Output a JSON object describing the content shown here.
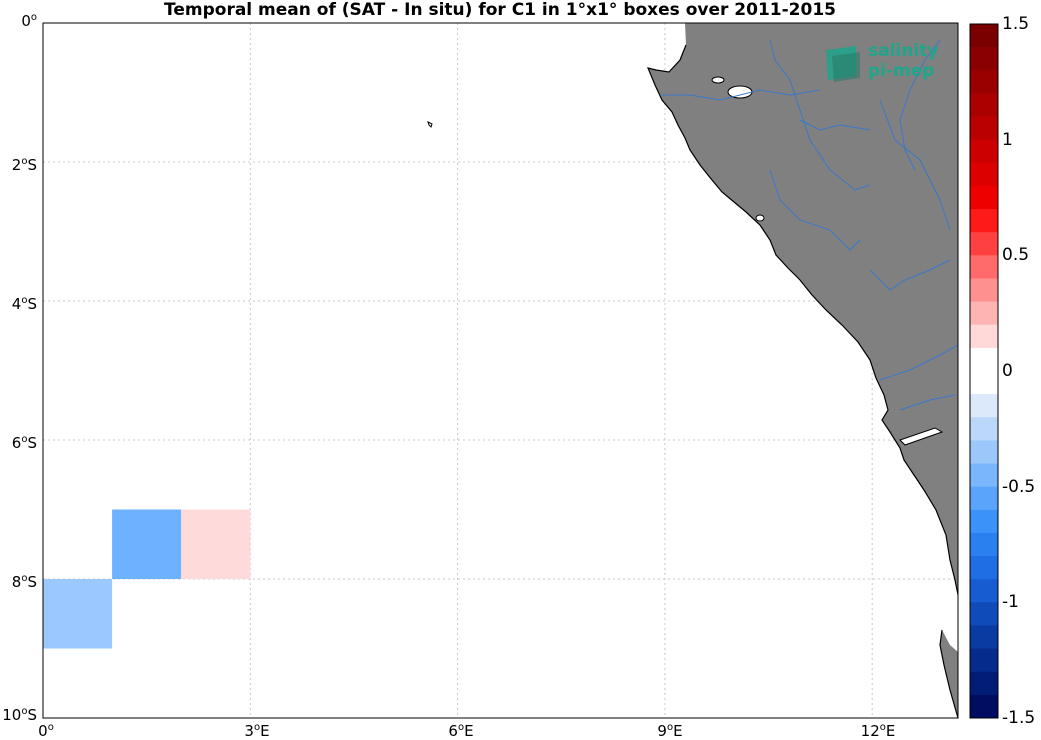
{
  "title": "Temporal mean of (SAT - In situ) for C1 in 1°x1° boxes over 2011-2015",
  "lat_ticks": [
    {
      "deg": "0",
      "hemi": ""
    },
    {
      "deg": "2",
      "hemi": "S"
    },
    {
      "deg": "4",
      "hemi": "S"
    },
    {
      "deg": "6",
      "hemi": "S"
    },
    {
      "deg": "8",
      "hemi": "S"
    },
    {
      "deg": "10",
      "hemi": "S"
    }
  ],
  "lon_ticks": [
    {
      "deg": "0",
      "hemi": ""
    },
    {
      "deg": "3",
      "hemi": "E"
    },
    {
      "deg": "6",
      "hemi": "E"
    },
    {
      "deg": "9",
      "hemi": "E"
    },
    {
      "deg": "12",
      "hemi": "E"
    }
  ],
  "colorbar": {
    "min": -1.5,
    "max": 1.5,
    "labels": [
      "1.5",
      "1",
      "0.5",
      "0",
      "-0.5",
      "-1",
      "-1.5"
    ],
    "colors_top_to_bottom": [
      "#7a0000",
      "#8a0000",
      "#990000",
      "#aa0000",
      "#bb0000",
      "#cc0000",
      "#dd0000",
      "#ee0000",
      "#ff1a1a",
      "#ff4040",
      "#ff6a6a",
      "#ff9090",
      "#ffb4b4",
      "#ffd8d8",
      "#ffffff",
      "#ffffff",
      "#dbe9fb",
      "#bbd8fb",
      "#9bc7fb",
      "#7ab6fb",
      "#5aa4fb",
      "#3b92f8",
      "#2b80f0",
      "#1f6ee3",
      "#175cd0",
      "#104bba",
      "#0a3ba3",
      "#052c8c",
      "#021d76",
      "#000d60"
    ]
  },
  "boxes": [
    {
      "lon_min": 0,
      "lon_max": 1,
      "lat_min": -9,
      "lat_max": -8,
      "color": "#9bc8ff"
    },
    {
      "lon_min": 1,
      "lon_max": 2,
      "lat_min": -8,
      "lat_max": -7,
      "color": "#6cb2ff"
    },
    {
      "lon_min": 2,
      "lon_max": 3,
      "lat_min": -8,
      "lat_max": -7,
      "color": "#ffdada"
    }
  ],
  "land_color": "#808080",
  "river_color": "#3a78c8",
  "logo": {
    "line1": "salinity",
    "line2": "pi-mep"
  }
}
